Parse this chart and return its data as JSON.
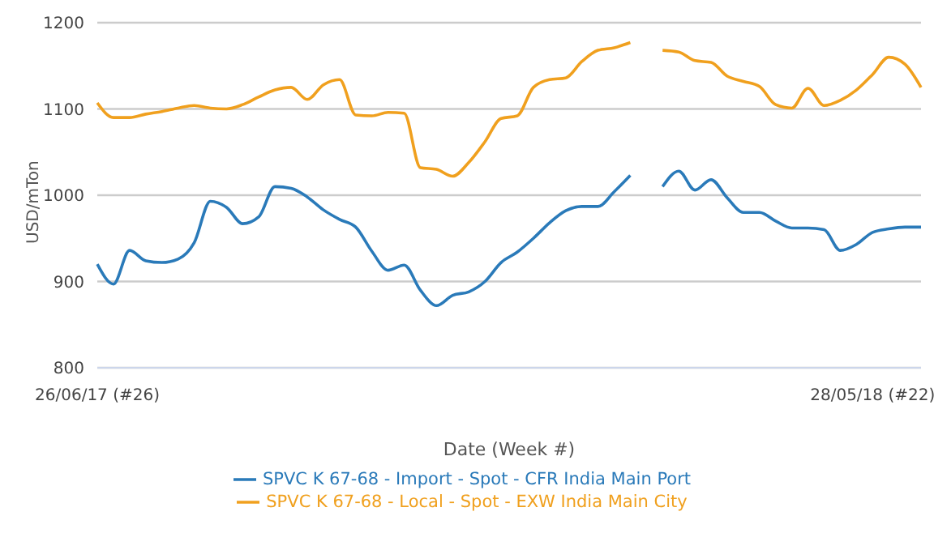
{
  "chart_data": {
    "type": "line",
    "xlabel": "Date (Week #)",
    "ylabel": "USD/mTon",
    "categories": [
      "26/06/17 (#26)",
      null,
      null,
      null,
      null,
      null,
      null,
      null,
      null,
      null,
      null,
      null,
      null,
      null,
      null,
      null,
      null,
      null,
      null,
      null,
      null,
      null,
      null,
      null,
      null,
      null,
      null,
      null,
      null,
      null,
      null,
      null,
      null,
      null,
      null,
      null,
      null,
      null,
      null,
      null,
      null,
      null,
      null,
      null,
      null,
      null,
      null,
      null,
      "28/05/18 (#22)",
      null,
      null,
      null
    ],
    "series": [
      {
        "name": "SPVC K 67-68 - Import - Spot - CFR India Main Port",
        "color": "#2a7ab9",
        "values": [
          920,
          897,
          936,
          924,
          922,
          926,
          945,
          993,
          986,
          967,
          975,
          1010,
          1008,
          998,
          983,
          972,
          963,
          935,
          913,
          919,
          890,
          872,
          884,
          888,
          900,
          922,
          934,
          950,
          968,
          982,
          987,
          987,
          1004,
          1023,
          null,
          1010,
          1028,
          1006,
          1018,
          997,
          980,
          980,
          970,
          962,
          962,
          960,
          936,
          943,
          957,
          961,
          963,
          963
        ]
      },
      {
        "name": "SPVC K 67-68 - Local - Spot - EXW India Main City",
        "color": "#f0a01e",
        "values": [
          1107,
          1090,
          1090,
          1094,
          1097,
          1101,
          1104,
          1101,
          1100,
          1105,
          1114,
          1122,
          1125,
          1111,
          1128,
          1134,
          1093,
          1092,
          1096,
          1095,
          1032,
          1030,
          1022,
          1038,
          1062,
          1089,
          1092,
          1125,
          1134,
          1136,
          1155,
          1168,
          1171,
          1177,
          null,
          1168,
          1166,
          1156,
          1154,
          1138,
          1132,
          1126,
          1105,
          1101,
          1124,
          1104,
          1110,
          1122,
          1140,
          1160,
          1152,
          1125
        ]
      }
    ],
    "ylim": [
      800,
      1200
    ],
    "yticks": [
      800,
      900,
      1000,
      1100,
      1200
    ],
    "grid": "y",
    "legend": "bottom",
    "marker": "none",
    "line_style": "solid"
  }
}
